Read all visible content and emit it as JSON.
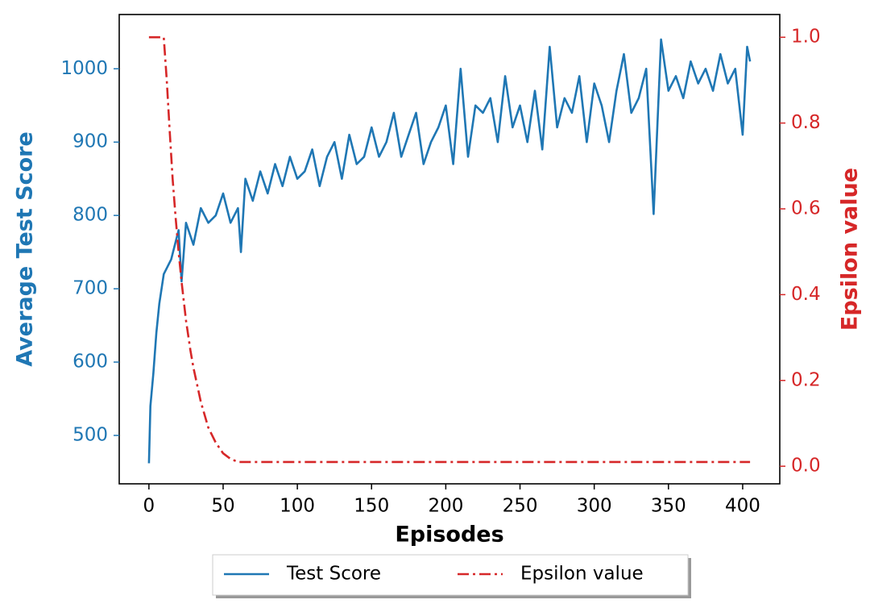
{
  "chart_data": {
    "type": "line",
    "xlabel": "Episodes",
    "ylabel": "Average Test Score",
    "y2label": "Epsilon value",
    "xlim": [
      -20,
      425
    ],
    "xticks": [
      0,
      50,
      100,
      150,
      200,
      250,
      300,
      350,
      400
    ],
    "ylim": [
      434,
      1074
    ],
    "yticks": [
      500,
      600,
      700,
      800,
      900,
      1000
    ],
    "y2lim": [
      -0.041,
      1.053
    ],
    "y2ticks": [
      {
        "value": 0,
        "label": "0.0"
      },
      0.2,
      0.4,
      0.6,
      0.8,
      {
        "value": 1,
        "label": "1.0"
      }
    ],
    "ycolor": "#1f77b4",
    "y2color": "#d62728",
    "legend": "lower center outside",
    "series": [
      {
        "name": "Test Score",
        "color": "#1f77b4",
        "linestyle": "solid",
        "x": [
          0,
          1,
          3,
          5,
          7,
          10,
          15,
          20,
          22,
          25,
          30,
          35,
          40,
          45,
          50,
          55,
          60,
          62,
          65,
          70,
          75,
          80,
          85,
          90,
          95,
          100,
          105,
          110,
          115,
          120,
          125,
          130,
          135,
          140,
          145,
          150,
          155,
          160,
          165,
          170,
          175,
          180,
          185,
          190,
          195,
          200,
          205,
          210,
          215,
          220,
          225,
          230,
          235,
          240,
          245,
          250,
          255,
          260,
          265,
          270,
          275,
          280,
          285,
          290,
          295,
          300,
          305,
          310,
          315,
          320,
          325,
          330,
          335,
          340,
          345,
          350,
          355,
          360,
          365,
          370,
          375,
          380,
          385,
          390,
          395,
          400,
          403,
          405
        ],
        "values": [
          462,
          540,
          585,
          640,
          680,
          720,
          740,
          780,
          710,
          790,
          760,
          810,
          790,
          800,
          830,
          790,
          810,
          750,
          850,
          820,
          860,
          830,
          870,
          840,
          880,
          850,
          860,
          890,
          840,
          880,
          900,
          850,
          910,
          870,
          880,
          920,
          880,
          900,
          940,
          880,
          910,
          940,
          870,
          900,
          920,
          950,
          870,
          1000,
          880,
          950,
          940,
          960,
          900,
          990,
          920,
          950,
          900,
          970,
          890,
          1030,
          920,
          960,
          940,
          990,
          900,
          980,
          950,
          900,
          970,
          1020,
          940,
          960,
          1000,
          802,
          1040,
          970,
          990,
          960,
          1010,
          980,
          1000,
          970,
          1020,
          980,
          1000,
          910,
          1030,
          1010
        ]
      },
      {
        "name": "Epsilon value",
        "color": "#d62728",
        "linestyle": "dashdot",
        "axis": "y2",
        "x": [
          0,
          10,
          12,
          14,
          16,
          18,
          20,
          22,
          25,
          28,
          30,
          35,
          40,
          45,
          50,
          55,
          60,
          405
        ],
        "values": [
          1.0,
          1.0,
          0.9,
          0.78,
          0.67,
          0.58,
          0.5,
          0.43,
          0.34,
          0.27,
          0.23,
          0.15,
          0.09,
          0.055,
          0.03,
          0.017,
          0.01,
          0.01
        ]
      }
    ]
  }
}
